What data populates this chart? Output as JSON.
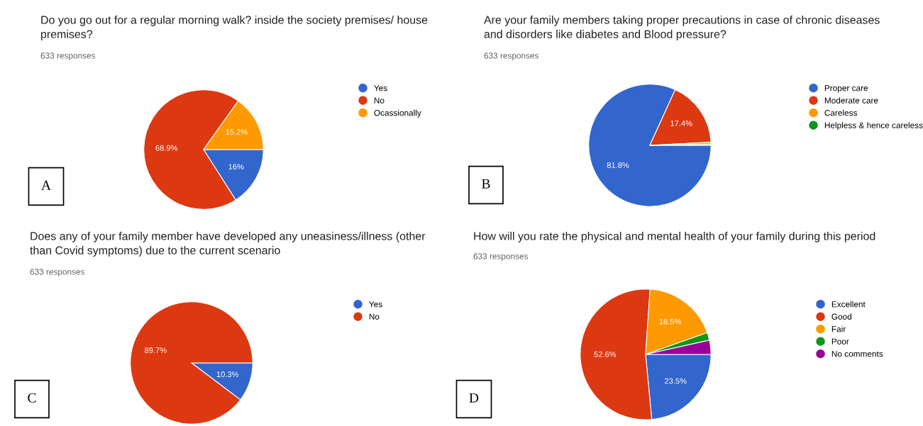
{
  "chart_data": [
    {
      "type": "pie",
      "title": "Do you go out for a regular morning walk? inside the society premises/ house premises?",
      "subtitle": "633 responses",
      "annotations": [
        "A"
      ],
      "legend": "right",
      "categories": [
        "Yes",
        "No",
        "Ocassionally"
      ],
      "values": [
        16,
        68.9,
        15.2
      ],
      "colors": [
        "#3366cc",
        "#dc3912",
        "#ff9900"
      ],
      "value_labels": [
        "16%",
        "68.9%",
        "15.2%"
      ]
    },
    {
      "type": "pie",
      "title": "Are your family members taking proper precautions in case of chronic diseases and disorders like diabetes and Blood pressure?",
      "subtitle": "633 responses",
      "annotations": [
        "B"
      ],
      "legend": "right",
      "categories": [
        "Proper care",
        "Moderate care",
        "Careless",
        "Helpless & hence careless"
      ],
      "values": [
        81.8,
        17.4,
        0.5,
        0.3
      ],
      "colors": [
        "#3366cc",
        "#dc3912",
        "#ff9900",
        "#109618"
      ],
      "value_labels": [
        "81.8%",
        "17.4%",
        null,
        null
      ]
    },
    {
      "type": "pie",
      "title": "Does any of your family member have developed any uneasiness/illness (other than Covid symptoms) due to the current scenario",
      "subtitle": "633 responses",
      "annotations": [
        "C"
      ],
      "legend": "right",
      "categories": [
        "Yes",
        "No"
      ],
      "values": [
        10.3,
        89.7
      ],
      "colors": [
        "#3366cc",
        "#dc3912"
      ],
      "value_labels": [
        "10.3%",
        "89.7%"
      ]
    },
    {
      "type": "pie",
      "title": "How will you rate the physical and mental health of your family during this period",
      "subtitle": "633 responses",
      "annotations": [
        "D"
      ],
      "legend": "right",
      "categories": [
        "Excellent",
        "Good",
        "Fair",
        "Poor",
        "No comments"
      ],
      "values": [
        23.5,
        52.6,
        18.5,
        1.9,
        3.5
      ],
      "colors": [
        "#3366cc",
        "#dc3912",
        "#ff9900",
        "#109618",
        "#990099"
      ],
      "value_labels": [
        "23.5%",
        "52.6%",
        "18.5%",
        null,
        null
      ]
    }
  ]
}
